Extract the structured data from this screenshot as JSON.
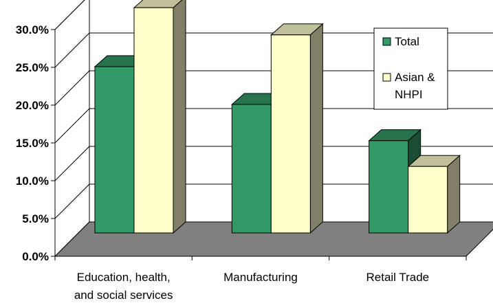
{
  "chart_data": {
    "type": "bar",
    "categories": [
      "Education, health, and social services",
      "Manufacturing",
      "Retail Trade"
    ],
    "category_label_lines": [
      [
        "Education, health,",
        "and social services"
      ],
      [
        "Manufacturing"
      ],
      [
        "Retail Trade"
      ]
    ],
    "series": [
      {
        "name": "Total",
        "values": [
          22.0,
          17.0,
          12.2
        ],
        "color": "#339966"
      },
      {
        "name": "Asian & NHPI",
        "values": [
          29.8,
          26.2,
          8.8
        ],
        "color": "#FFFFCC"
      }
    ],
    "legend_label_lines": [
      [
        "Total"
      ],
      [
        "Asian &",
        "NHPI"
      ]
    ],
    "yticks": [
      "0.0%",
      "5.0%",
      "10.0%",
      "15.0%",
      "20.0%",
      "25.0%",
      "30.0%"
    ],
    "ylim": [
      0,
      30
    ],
    "grid": true,
    "legend_position": "top-right",
    "title": "",
    "xlabel": "",
    "ylabel": "",
    "floor_color": "#808080"
  }
}
